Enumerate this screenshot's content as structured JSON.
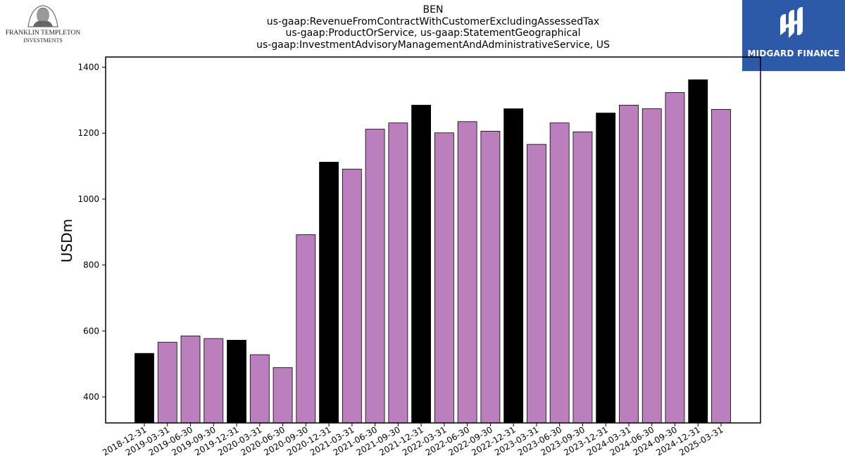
{
  "logos": {
    "left_line1": "FRANKLIN TEMPLETON",
    "left_line2": "INVESTMENTS",
    "right_name": "MIDGARD FINANCE"
  },
  "chart_data": {
    "type": "bar",
    "title_lines": [
      "BEN",
      "us-gaap:RevenueFromContractWithCustomerExcludingAssessedTax",
      "us-gaap:ProductOrService, us-gaap:StatementGeographical",
      "us-gaap:InvestmentAdvisoryManagementAndAdministrativeService, US"
    ],
    "xlabel": "",
    "ylabel": "USDm",
    "ylim": [
      322,
      1400
    ],
    "yticks": [
      400,
      600,
      800,
      1000,
      1200,
      1400
    ],
    "grid": false,
    "categories": [
      "2018-12-31",
      "2019-03-31",
      "2019-06-30",
      "2019-09-30",
      "2019-12-31",
      "2020-03-31",
      "2020-06-30",
      "2020-09-30",
      "2020-12-31",
      "2021-03-31",
      "2021-06-30",
      "2021-09-30",
      "2021-12-31",
      "2022-03-31",
      "2022-06-30",
      "2022-09-30",
      "2022-12-31",
      "2023-03-31",
      "2023-06-30",
      "2023-09-30",
      "2023-12-31",
      "2024-03-31",
      "2024-06-30",
      "2024-09-30",
      "2024-12-31",
      "2025-03-31"
    ],
    "values": [
      532,
      566,
      585,
      577,
      572,
      528,
      489,
      892,
      1112,
      1091,
      1212,
      1231,
      1285,
      1201,
      1235,
      1206,
      1274,
      1166,
      1231,
      1204,
      1261,
      1285,
      1274,
      1323,
      1362,
      1272
    ],
    "highlight": [
      true,
      false,
      false,
      false,
      true,
      false,
      false,
      false,
      true,
      false,
      false,
      false,
      true,
      false,
      false,
      false,
      true,
      false,
      false,
      false,
      true,
      false,
      false,
      false,
      true,
      false
    ],
    "colors": {
      "bar": "#bb7fbd",
      "highlight": "#000000",
      "edge": "#000000"
    }
  }
}
